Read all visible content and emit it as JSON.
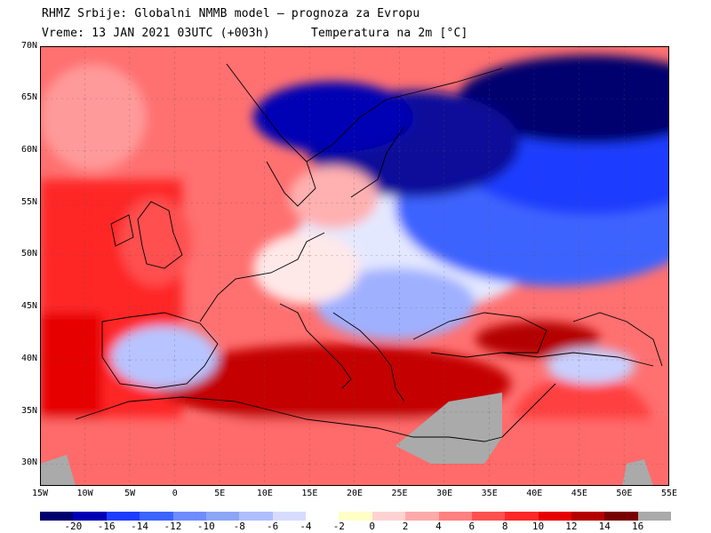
{
  "header": {
    "line1": "RHMZ Srbije: Globalni NMMB model — prognoza za Evropu",
    "line2": "Vreme: 13 JAN 2021 03UTC (+003h)",
    "line3": "Temperatura na 2m [°C]"
  },
  "axes": {
    "lat_labels": [
      "70N",
      "65N",
      "60N",
      "55N",
      "50N",
      "45N",
      "40N",
      "35N",
      "30N"
    ],
    "lon_labels": [
      "15W",
      "10W",
      "5W",
      "0",
      "5E",
      "10E",
      "15E",
      "20E",
      "25E",
      "30E",
      "35E",
      "40E",
      "45E",
      "50E",
      "55E"
    ]
  },
  "legend": {
    "labels": [
      "-20",
      "-16",
      "-14",
      "-12",
      "-10",
      "-8",
      "-6",
      "-4",
      "-2",
      "0",
      "2",
      "4",
      "6",
      "8",
      "10",
      "12",
      "14",
      "16"
    ],
    "colors": [
      "#00006e",
      "#0000b4",
      "#1e3cff",
      "#3c64ff",
      "#6e8cff",
      "#8ca5f5",
      "#afbeff",
      "#d7dcff",
      "#ffffff",
      "#ffffc8",
      "#ffd2d2",
      "#ffaaaa",
      "#ff8080",
      "#ff5050",
      "#ff2828",
      "#e60000",
      "#b40000",
      "#780000",
      "#aaaaaa"
    ]
  }
}
